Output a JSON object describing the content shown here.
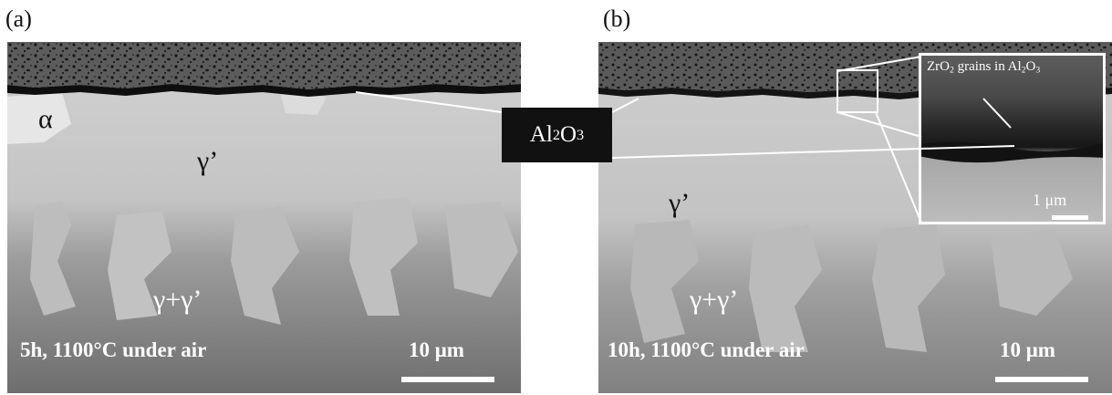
{
  "panels": [
    {
      "label": "(a)",
      "phase_alpha": "α",
      "phase_gamma_prime": "γ’",
      "phase_gamma_mix": "γ+γ’",
      "condition": "5h, 1100°C under air",
      "scale_label": "10 μm"
    },
    {
      "label": "(b)",
      "phase_gamma_prime": "γ’",
      "phase_gamma_mix": "γ+γ’",
      "condition": "10h, 1100°C under air",
      "scale_label": "10 μm"
    }
  ],
  "callout": {
    "main": "Al",
    "sub1": "2",
    "mid": "O",
    "sub2": "3"
  },
  "inset": {
    "t1": "ZrO",
    "s1": "2",
    "t2": " grains in Al",
    "s2": "2",
    "t3": "O",
    "s3": "3",
    "scale_label": "1 μm"
  },
  "colors": {
    "oxide_porous": "#5a5a5a",
    "alumina_layer": "#0e0e0e",
    "gamma_prime": "#c9c9c9",
    "gamma_mix": "#8d8d8d",
    "alpha": "#e6e6e6"
  }
}
